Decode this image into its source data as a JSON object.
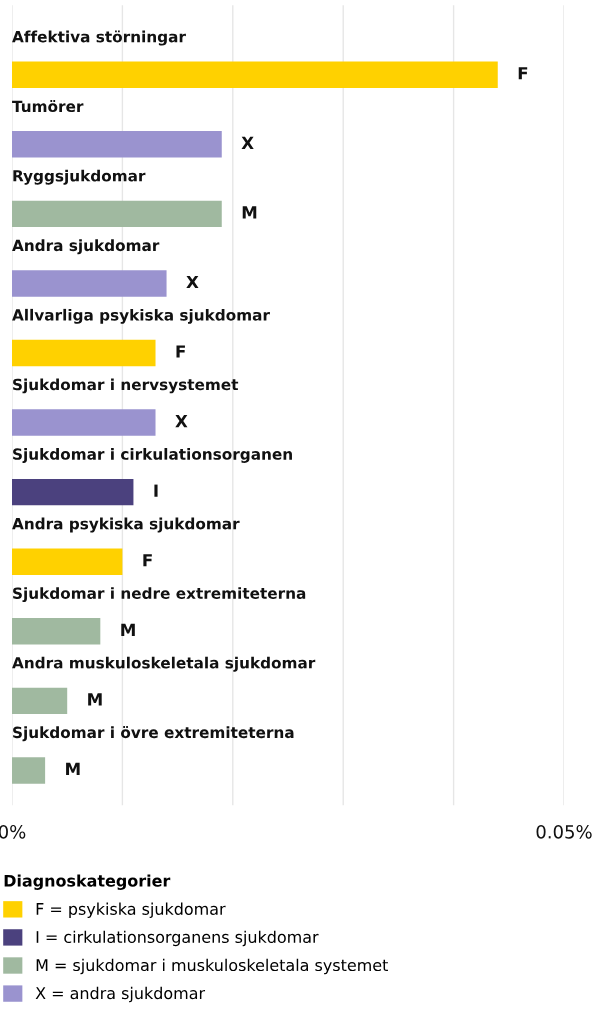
{
  "chart_data": {
    "type": "bar",
    "orientation": "horizontal",
    "categories": [
      "Affektiva störningar",
      "Tumörer",
      "Ryggsjukdomar",
      "Andra sjukdomar",
      "Allvarliga psykiska sjukdomar",
      "Sjukdomar i nervsystemet",
      "Sjukdomar i cirkulationsorganen",
      "Andra psykiska sjukdomar",
      "Sjukdomar i nedre extremiteterna",
      "Andra muskuloskeletala sjukdomar",
      "Sjukdomar i övre extremiteterna"
    ],
    "series": [
      {
        "name": "F = psykiska sjukdomar",
        "color": "#ffd100",
        "values": [
          0.044,
          null,
          null,
          null,
          0.013,
          null,
          null,
          0.01,
          null,
          null,
          null
        ],
        "value_labels": [
          "F",
          null,
          null,
          null,
          "F",
          null,
          null,
          "F",
          null,
          null,
          null
        ]
      },
      {
        "name": "I = cirkulationsorganens sjukdomar",
        "color": "#4b417e",
        "values": [
          null,
          null,
          null,
          null,
          null,
          null,
          0.011,
          null,
          null,
          null,
          null
        ],
        "value_labels": [
          null,
          null,
          null,
          null,
          null,
          null,
          "I",
          null,
          null,
          null,
          null
        ]
      },
      {
        "name": "M = sjukdomar i muskuloskeletala systemet",
        "color": "#a0b9a0",
        "values": [
          null,
          null,
          0.019,
          null,
          null,
          null,
          null,
          null,
          0.008,
          0.005,
          0.003
        ],
        "value_labels": [
          null,
          null,
          "M",
          null,
          null,
          null,
          null,
          null,
          "M",
          "M",
          "M"
        ]
      },
      {
        "name": "X = andra sjukdomar",
        "color": "#9a93cf",
        "values": [
          null,
          0.019,
          null,
          0.014,
          null,
          0.013,
          null,
          null,
          null,
          null,
          null
        ],
        "value_labels": [
          null,
          "X",
          null,
          "X",
          null,
          "X",
          null,
          null,
          null,
          null,
          null
        ]
      }
    ],
    "xlim": [
      0,
      0.05
    ],
    "xticks": [
      {
        "value": 0,
        "label": "0%"
      },
      {
        "value": 0.01,
        "label": null
      },
      {
        "value": 0.02,
        "label": null
      },
      {
        "value": 0.03,
        "label": null
      },
      {
        "value": 0.04,
        "label": null
      },
      {
        "value": 0.05,
        "label": "0.05%"
      }
    ],
    "grid": "x",
    "legend": "bottom",
    "legend_title": "Diagnoskategorier"
  }
}
